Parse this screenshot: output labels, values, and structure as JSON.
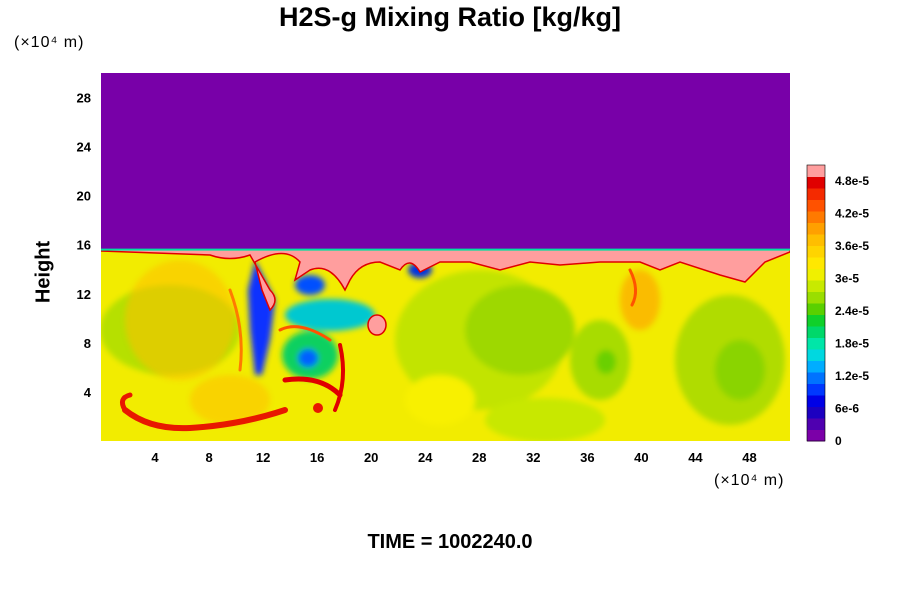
{
  "chart_data": {
    "type": "heatmap",
    "title": "H2S-g Mixing Ratio [kg/kg]",
    "xlabel": "",
    "ylabel": "Height",
    "x_unit": "(×10⁴ m)",
    "y_unit": "(×10⁴ m)",
    "xlim": [
      0,
      51
    ],
    "ylim": [
      0,
      30
    ],
    "x_ticks": [
      4,
      8,
      12,
      16,
      20,
      24,
      28,
      32,
      36,
      40,
      44,
      48
    ],
    "y_ticks": [
      4,
      8,
      12,
      16,
      20,
      24,
      28
    ],
    "colorbar": {
      "min": 0,
      "max": 5.1e-05,
      "labels": [
        "0",
        "6e-6",
        "1.2e-5",
        "1.8e-5",
        "2.4e-5",
        "3e-5",
        "3.6e-5",
        "4.2e-5",
        "4.8e-5"
      ],
      "label_values": [
        0,
        6e-06,
        1.2e-05,
        1.8e-05,
        2.4e-05,
        3e-05,
        3.6e-05,
        4.2e-05,
        4.8e-05
      ],
      "colors": [
        "#7b00a8",
        "#4f00b0",
        "#1c00c0",
        "#0000e6",
        "#0038ff",
        "#0073ff",
        "#00adff",
        "#00d8e0",
        "#00e6a8",
        "#00d86a",
        "#10d02a",
        "#5ad000",
        "#9ade00",
        "#c8ea00",
        "#f0f000",
        "#ffe800",
        "#ffd400",
        "#ffbe00",
        "#ffa000",
        "#ff7a00",
        "#ff5200",
        "#f42a00",
        "#e00000",
        "#ff9e9e"
      ]
    },
    "field_summary": {
      "upper_layer_value": 0,
      "upper_layer_bottom": 15.6,
      "boundary_band_value": 5.1e-05,
      "lower_background_value": 3.6e-05
    }
  },
  "footer": {
    "time_label": "TIME = 1002240.0"
  },
  "colors": {
    "upper_layer": "#7800a8",
    "background": "#ffffff"
  }
}
